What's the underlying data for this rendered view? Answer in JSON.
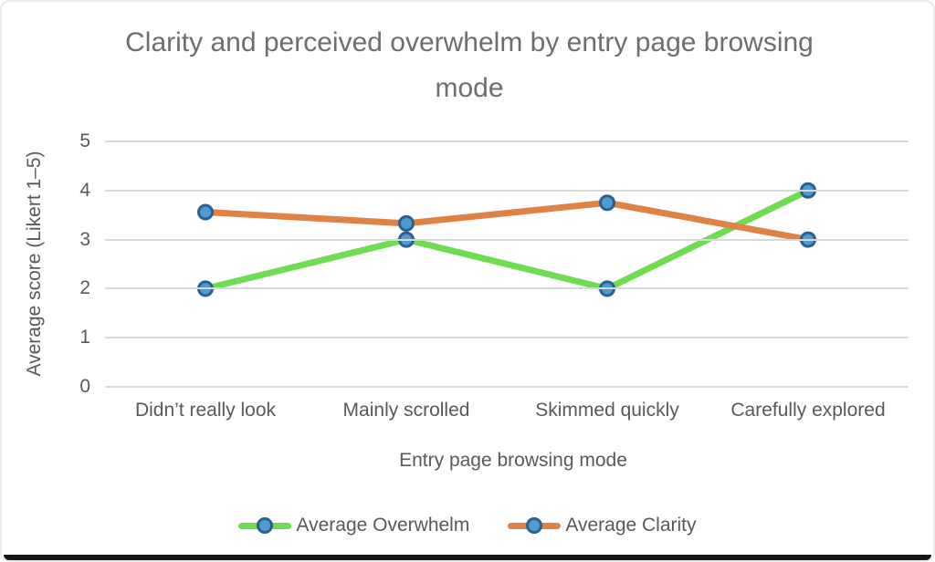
{
  "frame": {
    "background": "#ffffff",
    "border_color": "#ececec",
    "bottom_bar_color": "#161616"
  },
  "chart_data": {
    "type": "line",
    "title": "Clarity and perceived overwhelm by entry page browsing mode",
    "xlabel": "Entry page browsing mode",
    "ylabel": "Average score (Likert 1–5)",
    "categories": [
      "Didn’t really look",
      "Mainly scrolled",
      "Skimmed quickly",
      "Carefully explored"
    ],
    "series": [
      {
        "name": "Average Overwhelm",
        "color": "#6fdc52",
        "values": [
          2,
          3,
          2,
          4
        ]
      },
      {
        "name": "Average Clarity",
        "color": "#df8244",
        "values": [
          3.56,
          3.33,
          3.75,
          3
        ]
      }
    ],
    "marker": {
      "fill": "#4e9bd4",
      "stroke": "#2c5f8e",
      "radius": 7.5,
      "stroke_width": 3
    },
    "line_width": 7,
    "ylim": [
      0,
      5
    ],
    "yticks": [
      0,
      1,
      2,
      3,
      4,
      5
    ],
    "grid": true,
    "gridline_color": "#d9d9d9",
    "legend_position": "bottom",
    "text_color": "#595959",
    "title_color": "#6e6e6e"
  }
}
